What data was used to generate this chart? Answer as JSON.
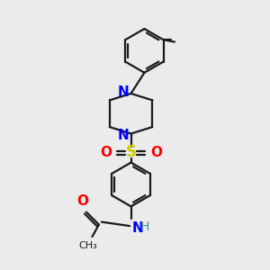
{
  "bg_color": "#ebebeb",
  "bond_color": "#1a1a1a",
  "N_color": "#0000ff",
  "O_color": "#ff0000",
  "S_color": "#cccc00",
  "H_color": "#4a9090",
  "line_width": 1.6,
  "font_size": 11,
  "fig_width": 3.0,
  "fig_height": 3.0,
  "dpi": 100,
  "xlim": [
    0,
    10
  ],
  "ylim": [
    0,
    10
  ]
}
